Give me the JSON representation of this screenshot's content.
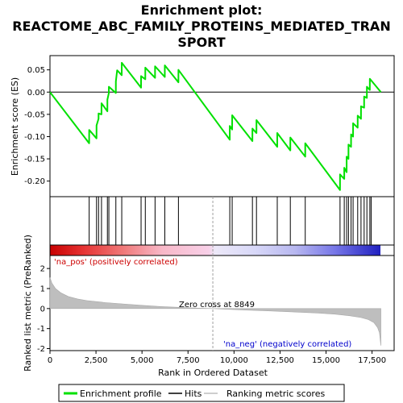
{
  "chart_data": {
    "type": "line",
    "title_lines": [
      "Enrichment plot:",
      "REACTOME_ABC_FAMILY_PROTEINS_MEDIATED_TRAN",
      "SPORT"
    ],
    "xlabel": "Rank in Ordered Dataset",
    "ylabel_top": "Enrichment score (ES)",
    "ylabel_bottom": "Ranked list metric (PreRanked)",
    "xlim": [
      0,
      18700
    ],
    "es_ylim": [
      -0.235,
      0.082
    ],
    "metric_ylim": [
      -2.1,
      2.65
    ],
    "x_ticks": [
      0,
      2500,
      5000,
      7500,
      10000,
      12500,
      15000,
      17500
    ],
    "x_tick_labels": [
      "0",
      "2,500",
      "5,000",
      "7,500",
      "10,000",
      "12,500",
      "15,000",
      "17,500"
    ],
    "es_ticks": [
      0.05,
      0.0,
      -0.05,
      -0.1,
      -0.15,
      -0.2
    ],
    "es_tick_labels": [
      "0.05",
      "0.00",
      "-0.05",
      "-0.10",
      "-0.15",
      "-0.20"
    ],
    "metric_ticks": [
      2,
      1,
      0,
      -1,
      -2
    ],
    "metric_tick_labels": [
      "2",
      "1",
      "0",
      "-1",
      "-2"
    ],
    "n_genes": 17980,
    "zero_cross": 8849,
    "zero_cross_label": "Zero cross at 8849",
    "pos_label": "'na_pos' (positively correlated)",
    "neg_label": "'na_neg' (negatively correlated)",
    "hits": [
      2130,
      2530,
      2640,
      2800,
      3120,
      3200,
      3580,
      3900,
      4950,
      5180,
      5710,
      6240,
      6980,
      9770,
      9900,
      11000,
      11220,
      12350,
      13060,
      13870,
      15760,
      15990,
      16120,
      16220,
      16360,
      16470,
      16720,
      16900,
      17070,
      17220,
      17380,
      17450
    ],
    "es_points": [
      [
        0,
        0.0
      ],
      [
        2129,
        -0.115
      ],
      [
        2130,
        -0.085
      ],
      [
        2529,
        -0.104
      ],
      [
        2530,
        -0.075
      ],
      [
        2639,
        -0.06
      ],
      [
        2640,
        -0.048
      ],
      [
        2799,
        -0.05
      ],
      [
        2800,
        -0.025
      ],
      [
        3119,
        -0.043
      ],
      [
        3120,
        -0.017
      ],
      [
        3199,
        -0.002
      ],
      [
        3200,
        0.012
      ],
      [
        3579,
        -0.002
      ],
      [
        3580,
        0.024
      ],
      [
        3650,
        0.049
      ],
      [
        3899,
        0.038
      ],
      [
        3900,
        0.066
      ],
      [
        4949,
        0.01
      ],
      [
        4950,
        0.036
      ],
      [
        5179,
        0.029
      ],
      [
        5180,
        0.055
      ],
      [
        5709,
        0.032
      ],
      [
        5710,
        0.058
      ],
      [
        6239,
        0.034
      ],
      [
        6240,
        0.06
      ],
      [
        6979,
        0.022
      ],
      [
        6980,
        0.05
      ],
      [
        9769,
        -0.107
      ],
      [
        9770,
        -0.076
      ],
      [
        9899,
        -0.084
      ],
      [
        9900,
        -0.052
      ],
      [
        10999,
        -0.11
      ],
      [
        11000,
        -0.082
      ],
      [
        11219,
        -0.092
      ],
      [
        11220,
        -0.063
      ],
      [
        12349,
        -0.123
      ],
      [
        12350,
        -0.092
      ],
      [
        13059,
        -0.131
      ],
      [
        13060,
        -0.102
      ],
      [
        13869,
        -0.145
      ],
      [
        13870,
        -0.115
      ],
      [
        15759,
        -0.22
      ],
      [
        15760,
        -0.185
      ],
      [
        15989,
        -0.195
      ],
      [
        15990,
        -0.17
      ],
      [
        16119,
        -0.18
      ],
      [
        16120,
        -0.145
      ],
      [
        16219,
        -0.15
      ],
      [
        16220,
        -0.118
      ],
      [
        16359,
        -0.123
      ],
      [
        16360,
        -0.095
      ],
      [
        16469,
        -0.1
      ],
      [
        16470,
        -0.07
      ],
      [
        16719,
        -0.08
      ],
      [
        16720,
        -0.053
      ],
      [
        16899,
        -0.06
      ],
      [
        16900,
        -0.032
      ],
      [
        17069,
        -0.035
      ],
      [
        17070,
        -0.01
      ],
      [
        17219,
        -0.013
      ],
      [
        17220,
        0.012
      ],
      [
        17379,
        0.005
      ],
      [
        17380,
        0.03
      ],
      [
        17979,
        0.0
      ]
    ],
    "metric_profile": [
      [
        0,
        1.55
      ],
      [
        100,
        1.28
      ],
      [
        300,
        1.0
      ],
      [
        600,
        0.78
      ],
      [
        1000,
        0.6
      ],
      [
        1500,
        0.48
      ],
      [
        2000,
        0.4
      ],
      [
        3000,
        0.3
      ],
      [
        4000,
        0.23
      ],
      [
        5000,
        0.16
      ],
      [
        6000,
        0.1
      ],
      [
        7000,
        0.06
      ],
      [
        8000,
        0.02
      ],
      [
        8849,
        0.0
      ],
      [
        9500,
        -0.03
      ],
      [
        10500,
        -0.07
      ],
      [
        12000,
        -0.12
      ],
      [
        13500,
        -0.18
      ],
      [
        14500,
        -0.22
      ],
      [
        15500,
        -0.28
      ],
      [
        16300,
        -0.36
      ],
      [
        16900,
        -0.45
      ],
      [
        17300,
        -0.55
      ],
      [
        17600,
        -0.7
      ],
      [
        17800,
        -0.95
      ],
      [
        17900,
        -1.2
      ],
      [
        17980,
        -1.85
      ]
    ],
    "legend": [
      "Enrichment profile",
      "Hits",
      "Ranking metric scores"
    ],
    "colors": {
      "es_line": "#00e000",
      "hits": "#000000",
      "metric_fill": "#bebebe",
      "zero_line": "#a0a0a0",
      "pos_text": "#cc0000",
      "neg_text": "#0000cc"
    }
  }
}
